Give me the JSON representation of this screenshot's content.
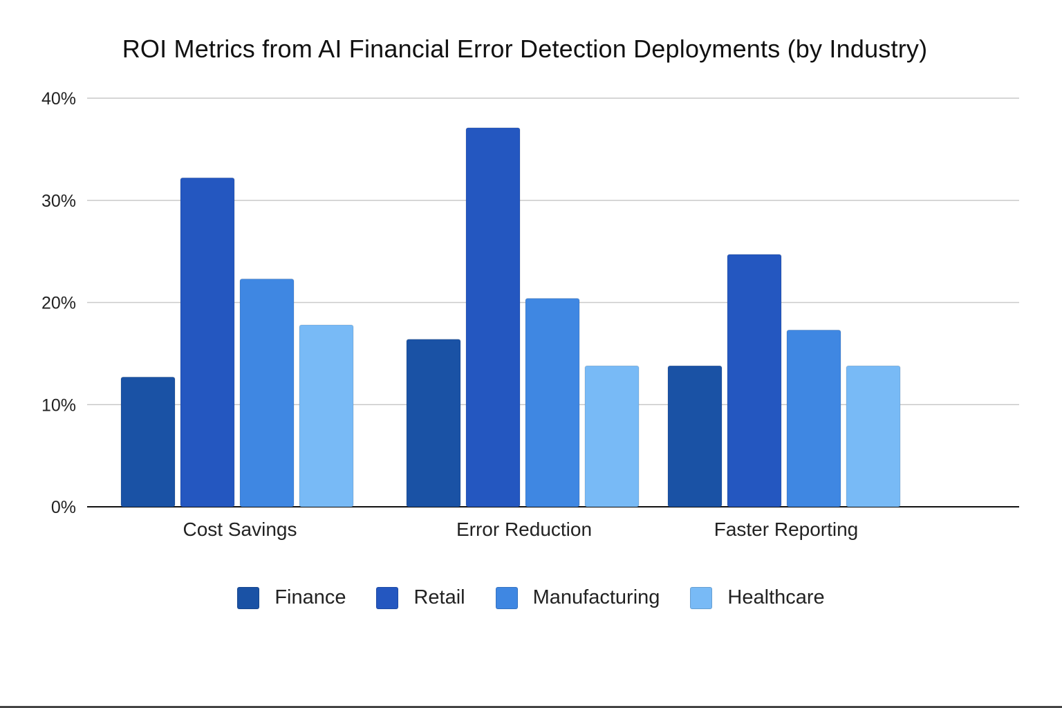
{
  "chart_data": {
    "type": "bar",
    "title": "ROI Metrics from AI Financial Error Detection Deployments (by Industry)",
    "xlabel": "",
    "ylabel": "",
    "categories": [
      "Cost Savings",
      "Error Reduction",
      "Faster Reporting"
    ],
    "series": [
      {
        "name": "Finance",
        "color": "#1a52a5",
        "values": [
          12.7,
          16.4,
          13.8
        ]
      },
      {
        "name": "Retail",
        "color": "#2457c0",
        "values": [
          32.2,
          37.1,
          24.7
        ]
      },
      {
        "name": "Manufacturing",
        "color": "#3f87e2",
        "values": [
          22.3,
          20.4,
          17.3
        ]
      },
      {
        "name": "Healthcare",
        "color": "#78baf6",
        "values": [
          17.8,
          13.8,
          13.8
        ]
      }
    ],
    "ylim": [
      0,
      40
    ],
    "yticks": [
      0,
      10,
      20,
      30,
      40
    ],
    "ytick_labels": [
      "0%",
      "10%",
      "20%",
      "30%",
      "40%"
    ],
    "grid": true,
    "legend_position": "bottom-center"
  }
}
